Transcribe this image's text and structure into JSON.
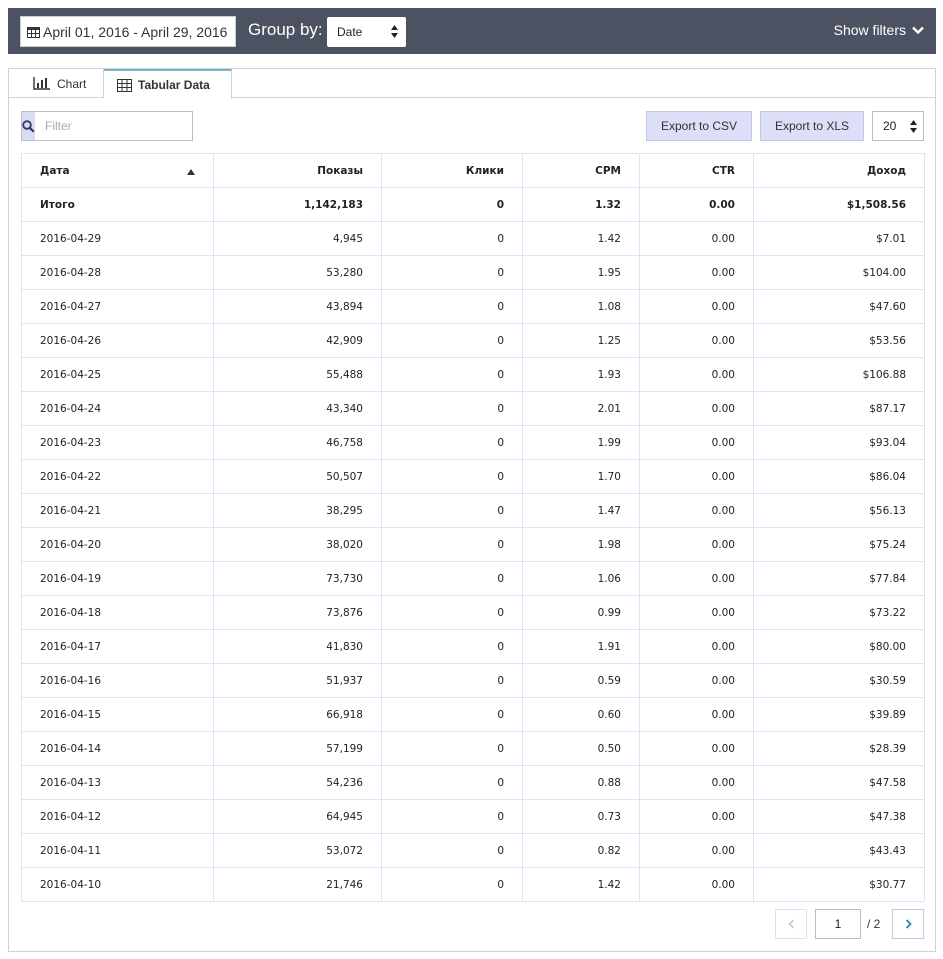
{
  "toolbar": {
    "date_range": "April 01, 2016 - April 29, 2016",
    "group_by_label": "Group by:",
    "group_by_value": "Date",
    "show_filters": "Show filters"
  },
  "tabs": [
    {
      "label": "Chart",
      "icon": "bar-chart-icon",
      "active": false
    },
    {
      "label": "Tabular Data",
      "icon": "table-icon",
      "active": true
    }
  ],
  "controls": {
    "filter_placeholder": "Filter",
    "export_csv": "Export to CSV",
    "export_xls": "Export to XLS",
    "page_size": "20"
  },
  "table": {
    "columns": [
      "Дата",
      "Показы",
      "Клики",
      "CPM",
      "CTR",
      "Доход"
    ],
    "sorted_column": "Дата",
    "sort_direction": "ascending",
    "total": [
      "Итого",
      "1,142,183",
      "0",
      "1.32",
      "0.00",
      "$1,508.56"
    ],
    "rows": [
      [
        "2016-04-29",
        "4,945",
        "0",
        "1.42",
        "0.00",
        "$7.01"
      ],
      [
        "2016-04-28",
        "53,280",
        "0",
        "1.95",
        "0.00",
        "$104.00"
      ],
      [
        "2016-04-27",
        "43,894",
        "0",
        "1.08",
        "0.00",
        "$47.60"
      ],
      [
        "2016-04-26",
        "42,909",
        "0",
        "1.25",
        "0.00",
        "$53.56"
      ],
      [
        "2016-04-25",
        "55,488",
        "0",
        "1.93",
        "0.00",
        "$106.88"
      ],
      [
        "2016-04-24",
        "43,340",
        "0",
        "2.01",
        "0.00",
        "$87.17"
      ],
      [
        "2016-04-23",
        "46,758",
        "0",
        "1.99",
        "0.00",
        "$93.04"
      ],
      [
        "2016-04-22",
        "50,507",
        "0",
        "1.70",
        "0.00",
        "$86.04"
      ],
      [
        "2016-04-21",
        "38,295",
        "0",
        "1.47",
        "0.00",
        "$56.13"
      ],
      [
        "2016-04-20",
        "38,020",
        "0",
        "1.98",
        "0.00",
        "$75.24"
      ],
      [
        "2016-04-19",
        "73,730",
        "0",
        "1.06",
        "0.00",
        "$77.84"
      ],
      [
        "2016-04-18",
        "73,876",
        "0",
        "0.99",
        "0.00",
        "$73.22"
      ],
      [
        "2016-04-17",
        "41,830",
        "0",
        "1.91",
        "0.00",
        "$80.00"
      ],
      [
        "2016-04-16",
        "51,937",
        "0",
        "0.59",
        "0.00",
        "$30.59"
      ],
      [
        "2016-04-15",
        "66,918",
        "0",
        "0.60",
        "0.00",
        "$39.89"
      ],
      [
        "2016-04-14",
        "57,199",
        "0",
        "0.50",
        "0.00",
        "$28.39"
      ],
      [
        "2016-04-13",
        "54,236",
        "0",
        "0.88",
        "0.00",
        "$47.58"
      ],
      [
        "2016-04-12",
        "64,945",
        "0",
        "0.73",
        "0.00",
        "$47.38"
      ],
      [
        "2016-04-11",
        "53,072",
        "0",
        "0.82",
        "0.00",
        "$43.43"
      ],
      [
        "2016-04-10",
        "21,746",
        "0",
        "1.42",
        "0.00",
        "$30.77"
      ]
    ]
  },
  "pagination": {
    "current_page": "1",
    "total_pages": "/ 2"
  },
  "colors": {
    "topbar": "#4c5261",
    "button_bg": "#dcdff7",
    "accent": "#2a7fb8"
  }
}
